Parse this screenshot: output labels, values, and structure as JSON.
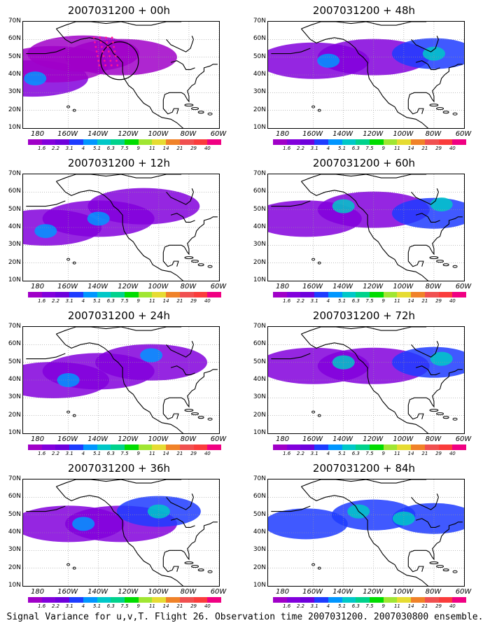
{
  "panels": [
    {
      "title": "2007031200 + 00h",
      "blobs": [
        {
          "lon": 176,
          "lat": 38,
          "level": 1
        },
        {
          "lon": -170,
          "lat": 46,
          "level": 0
        },
        {
          "lon": -150,
          "lat": 52,
          "level": 0
        },
        {
          "lon": -125,
          "lat": 50,
          "level": 0
        },
        {
          "lon": 178,
          "lat": 38,
          "level": 3
        }
      ]
    },
    {
      "title": "2007031200 + 12h",
      "blobs": [
        {
          "lon": -175,
          "lat": 40,
          "level": 1
        },
        {
          "lon": -140,
          "lat": 45,
          "level": 1
        },
        {
          "lon": -110,
          "lat": 52,
          "level": 1
        },
        {
          "lon": -175,
          "lat": 38,
          "level": 3
        },
        {
          "lon": -140,
          "lat": 45,
          "level": 3
        }
      ]
    },
    {
      "title": "2007031200 + 24h",
      "blobs": [
        {
          "lon": -170,
          "lat": 40,
          "level": 1
        },
        {
          "lon": -140,
          "lat": 45,
          "level": 1
        },
        {
          "lon": -105,
          "lat": 50,
          "level": 1
        },
        {
          "lon": -105,
          "lat": 54,
          "level": 3
        },
        {
          "lon": -160,
          "lat": 40,
          "level": 3
        }
      ]
    },
    {
      "title": "2007031200 + 36h",
      "blobs": [
        {
          "lon": -160,
          "lat": 45,
          "level": 1
        },
        {
          "lon": -125,
          "lat": 45,
          "level": 1
        },
        {
          "lon": -100,
          "lat": 52,
          "level": 2
        },
        {
          "lon": -100,
          "lat": 52,
          "level": 4
        },
        {
          "lon": -150,
          "lat": 45,
          "level": 3
        }
      ]
    },
    {
      "title": "2007031200 + 48h",
      "blobs": [
        {
          "lon": -160,
          "lat": 48,
          "level": 1
        },
        {
          "lon": -120,
          "lat": 50,
          "level": 1
        },
        {
          "lon": -80,
          "lat": 52,
          "level": 2
        },
        {
          "lon": -80,
          "lat": 52,
          "level": 4
        },
        {
          "lon": -150,
          "lat": 48,
          "level": 3
        }
      ]
    },
    {
      "title": "2007031200 + 60h",
      "blobs": [
        {
          "lon": -165,
          "lat": 45,
          "level": 1
        },
        {
          "lon": -120,
          "lat": 50,
          "level": 1
        },
        {
          "lon": -80,
          "lat": 48,
          "level": 2
        },
        {
          "lon": -75,
          "lat": 53,
          "level": 4
        },
        {
          "lon": -140,
          "lat": 52,
          "level": 4
        }
      ]
    },
    {
      "title": "2007031200 + 72h",
      "blobs": [
        {
          "lon": -160,
          "lat": 48,
          "level": 1
        },
        {
          "lon": -120,
          "lat": 48,
          "level": 1
        },
        {
          "lon": -80,
          "lat": 50,
          "level": 2
        },
        {
          "lon": -140,
          "lat": 50,
          "level": 4
        },
        {
          "lon": -75,
          "lat": 52,
          "level": 4
        }
      ]
    },
    {
      "title": "2007031200 + 84h",
      "blobs": [
        {
          "lon": -165,
          "lat": 45,
          "level": 2
        },
        {
          "lon": -120,
          "lat": 50,
          "level": 2
        },
        {
          "lon": -80,
          "lat": 48,
          "level": 2
        },
        {
          "lon": -130,
          "lat": 52,
          "level": 4
        },
        {
          "lon": -100,
          "lat": 48,
          "level": 4
        }
      ]
    }
  ],
  "lat_labels": [
    "70N",
    "60N",
    "50N",
    "40N",
    "30N",
    "20N",
    "10N"
  ],
  "lon_labels": [
    "180",
    "160W",
    "140W",
    "120W",
    "100W",
    "80W",
    "60W"
  ],
  "colorbar": {
    "labels": [
      "1.6",
      "2.2",
      "3.1",
      "4",
      "5.1",
      "6.3",
      "7.5",
      "9",
      "11",
      "14",
      "21",
      "29",
      "40"
    ],
    "colors": [
      "#a000c8",
      "#8200dc",
      "#6e00dc",
      "#1e3cff",
      "#0096ff",
      "#00c8c8",
      "#00d28c",
      "#00dc00",
      "#a0e632",
      "#e6dc32",
      "#f08228",
      "#f05050",
      "#fa3c3c",
      "#f00082"
    ]
  },
  "blob_colors": [
    "#a000c8",
    "#8200dc",
    "#1e3cff",
    "#0096ff",
    "#00c8c8"
  ],
  "caption": "Signal Variance for u,v,T. Flight 26. Observation time 2007031200. 2007030800 ensemble."
}
